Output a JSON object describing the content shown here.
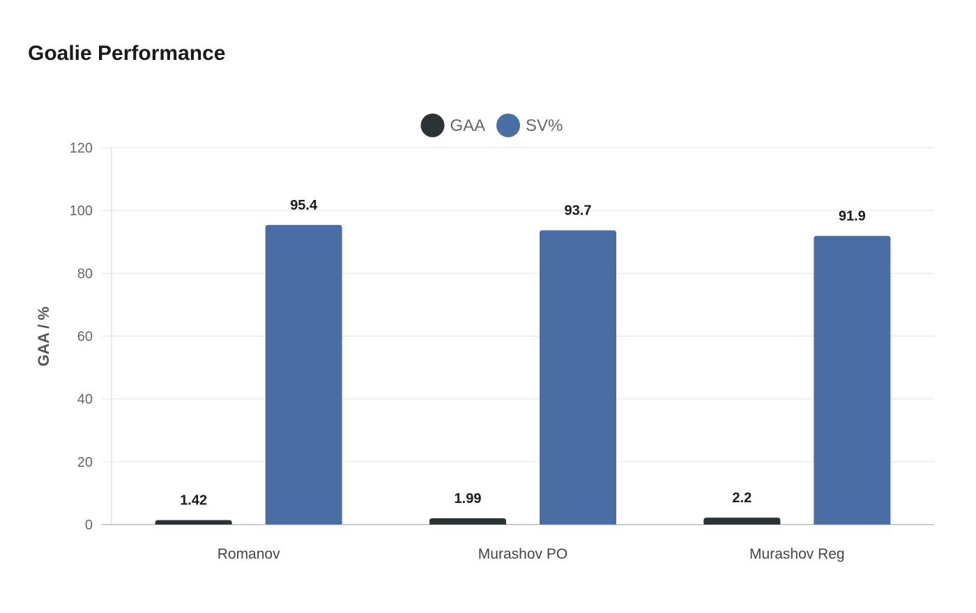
{
  "chart_data": {
    "type": "bar",
    "title": "Goalie Performance",
    "xlabel": "",
    "ylabel": "GAA / %",
    "categories": [
      "Romanov",
      "Murashov PO",
      "Murashov Reg"
    ],
    "series": [
      {
        "name": "GAA",
        "values": [
          1.42,
          1.99,
          2.2
        ],
        "color": "#2b3335"
      },
      {
        "name": "SV%",
        "values": [
          95.4,
          93.7,
          91.9
        ],
        "color": "#4a6ea3"
      }
    ],
    "ylim": [
      0,
      120
    ],
    "yticks": [
      0,
      20,
      40,
      60,
      80,
      100,
      120
    ],
    "grid": true,
    "legend_position": "top-center",
    "data_labels": true
  }
}
